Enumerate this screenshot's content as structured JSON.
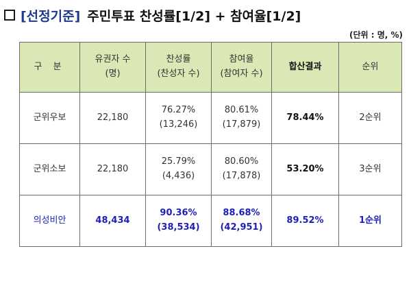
{
  "heading": {
    "tag": "[선정기준]",
    "text": "주민투표 찬성률[1/2] + 참여율[1/2]"
  },
  "unit_note": "(단위 : 명, %)",
  "table": {
    "headers": [
      {
        "l1": "구  분",
        "l2": ""
      },
      {
        "l1": "유권자 수",
        "l2": "(명)"
      },
      {
        "l1": "찬성률",
        "l2": "(찬성자 수)"
      },
      {
        "l1": "참여율",
        "l2": "(참여자 수)"
      },
      {
        "l1": "합산결과",
        "l2": ""
      },
      {
        "l1": "순위",
        "l2": ""
      }
    ],
    "rows": [
      {
        "name": "군위우보",
        "voters": "22,180",
        "approval": "76.27%",
        "approval_count": "(13,246)",
        "participation": "80.61%",
        "participation_count": "(17,879)",
        "combined": "78.44%",
        "rank": "2순위"
      },
      {
        "name": "군위소보",
        "voters": "22,180",
        "approval": "25.79%",
        "approval_count": "(4,436)",
        "participation": "80.60%",
        "participation_count": "(17,878)",
        "combined": "53.20%",
        "rank": "3순위"
      },
      {
        "name": "의성비안",
        "voters": "48,434",
        "approval": "90.36%",
        "approval_count": "(38,534)",
        "participation": "88.68%",
        "participation_count": "(42,951)",
        "combined": "89.52%",
        "rank": "1순위"
      }
    ]
  }
}
